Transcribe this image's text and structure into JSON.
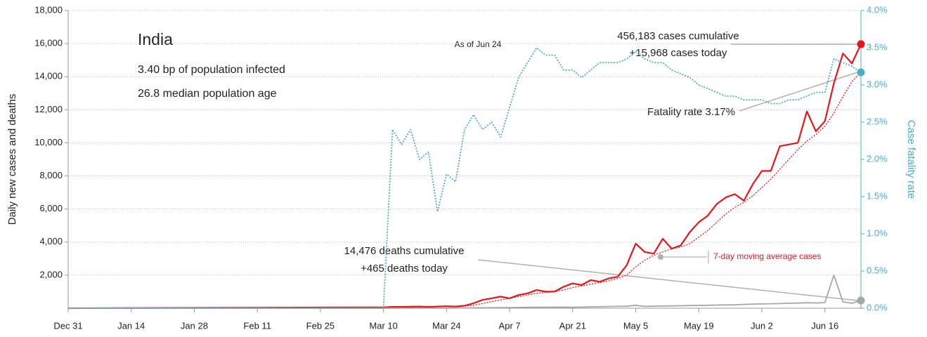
{
  "chart_data": {
    "type": "line",
    "annotations": [
      "India",
      "3.40 bp of population infected",
      "26.8 median population age",
      "As of Jun 24",
      "456,183 cases cumulative",
      "+15,968 cases today",
      "Fatality rate 3.17%",
      "14,476 deaths cumulative",
      "+465 deaths today",
      "7-day moving average cases"
    ],
    "ylabel": "Daily new cases and deaths",
    "y2label": "Case fatality rate",
    "x": [
      0,
      70,
      72,
      74,
      76,
      78,
      80,
      82,
      84,
      86,
      88,
      90,
      92,
      94,
      96,
      98,
      100,
      102,
      104,
      106,
      108,
      110,
      112,
      114,
      116,
      118,
      120,
      122,
      124,
      126,
      128,
      130,
      132,
      134,
      136,
      138,
      140,
      142,
      144,
      146,
      148,
      150,
      152,
      154,
      156,
      158,
      160,
      162,
      164,
      166,
      168,
      170,
      172,
      174,
      176
    ],
    "xlim": [
      0,
      176
    ],
    "xticks": [
      {
        "value": 0,
        "label": "Dec 31"
      },
      {
        "value": 14,
        "label": "Jan 14"
      },
      {
        "value": 28,
        "label": "Jan 28"
      },
      {
        "value": 42,
        "label": "Feb 11"
      },
      {
        "value": 56,
        "label": "Feb 25"
      },
      {
        "value": 70,
        "label": "Mar 10"
      },
      {
        "value": 84,
        "label": "Mar 24"
      },
      {
        "value": 98,
        "label": "Apr 7"
      },
      {
        "value": 112,
        "label": "Apr 21"
      },
      {
        "value": 126,
        "label": "May 5"
      },
      {
        "value": 140,
        "label": "May 19"
      },
      {
        "value": 154,
        "label": "Jun 2"
      },
      {
        "value": 168,
        "label": "Jun 16"
      }
    ],
    "ylim": [
      0,
      18000
    ],
    "yticks": [
      {
        "value": 2000,
        "label": "2,000"
      },
      {
        "value": 4000,
        "label": "4,000"
      },
      {
        "value": 6000,
        "label": "6,000"
      },
      {
        "value": 8000,
        "label": "8,000"
      },
      {
        "value": 10000,
        "label": "10,000"
      },
      {
        "value": 12000,
        "label": "12,000"
      },
      {
        "value": 14000,
        "label": "14,000"
      },
      {
        "value": 16000,
        "label": "16,000"
      },
      {
        "value": 18000,
        "label": "18,000"
      }
    ],
    "y2lim": [
      0,
      4
    ],
    "y2ticks": [
      {
        "value": 0,
        "label": "0.0%"
      },
      {
        "value": 0.5,
        "label": "0.5%"
      },
      {
        "value": 1,
        "label": "1.0%"
      },
      {
        "value": 1.5,
        "label": "1.5%"
      },
      {
        "value": 2,
        "label": "2.0%"
      },
      {
        "value": 2.5,
        "label": "2.5%"
      },
      {
        "value": 3,
        "label": "3.0%"
      },
      {
        "value": 3.5,
        "label": "3.5%"
      },
      {
        "value": 4,
        "label": "4.0%"
      }
    ],
    "grid": true,
    "series": [
      {
        "color": "#e8141b",
        "linestyle": "solid",
        "width": 2.2,
        "endpoint": true,
        "values": [
          0,
          50,
          80,
          80,
          90,
          100,
          80,
          100,
          120,
          100,
          150,
          300,
          500,
          600,
          700,
          600,
          800,
          900,
          1100,
          1000,
          1000,
          1300,
          1500,
          1400,
          1700,
          1600,
          1800,
          1900,
          2600,
          3900,
          3400,
          3300,
          4200,
          3600,
          3800,
          4600,
          5200,
          5600,
          6300,
          6700,
          6900,
          6500,
          7500,
          8300,
          8300,
          9800,
          9900,
          10000,
          11900,
          10700,
          11300,
          13600,
          15400,
          14800,
          15968
        ]
      },
      {
        "color": "#e8141b",
        "linestyle": "dotted",
        "width": 1.3,
        "endpoint": false,
        "values": [
          0,
          40,
          60,
          70,
          80,
          85,
          90,
          95,
          100,
          110,
          130,
          180,
          280,
          400,
          500,
          600,
          700,
          800,
          900,
          950,
          1000,
          1100,
          1250,
          1350,
          1450,
          1550,
          1650,
          1800,
          2000,
          2500,
          2900,
          3200,
          3400,
          3600,
          3700,
          3900,
          4300,
          4700,
          5200,
          5700,
          6100,
          6400,
          6800,
          7300,
          7800,
          8400,
          9000,
          9600,
          10100,
          10500,
          11000,
          11800,
          12800,
          13700,
          14300
        ]
      },
      {
        "color": "#a6a6a6",
        "linestyle": "solid",
        "width": 1.8,
        "endpoint": true,
        "values": [
          0,
          1,
          2,
          3,
          4,
          5,
          6,
          8,
          10,
          12,
          15,
          20,
          25,
          30,
          35,
          40,
          45,
          50,
          55,
          60,
          65,
          70,
          60,
          70,
          80,
          90,
          100,
          110,
          120,
          180,
          110,
          120,
          130,
          140,
          150,
          160,
          170,
          180,
          190,
          200,
          210,
          230,
          250,
          260,
          270,
          280,
          300,
          310,
          330,
          320,
          340,
          2003,
          380,
          300,
          465
        ]
      },
      {
        "color": "#4bacc6",
        "linestyle": "dotted",
        "width": 1.8,
        "endpoint": true,
        "axis": "y2",
        "values": [
          0,
          0,
          2.4,
          2.2,
          2.4,
          2.0,
          2.1,
          1.3,
          1.8,
          1.7,
          2.4,
          2.6,
          2.4,
          2.5,
          2.3,
          2.7,
          3.1,
          3.3,
          3.5,
          3.4,
          3.4,
          3.2,
          3.2,
          3.1,
          3.2,
          3.3,
          3.3,
          3.3,
          3.35,
          3.45,
          3.35,
          3.3,
          3.3,
          3.2,
          3.15,
          3.1,
          3.0,
          2.95,
          2.9,
          2.85,
          2.85,
          2.8,
          2.8,
          2.8,
          2.75,
          2.75,
          2.8,
          2.8,
          2.85,
          2.9,
          2.9,
          3.35,
          3.3,
          3.25,
          3.17
        ]
      }
    ]
  }
}
